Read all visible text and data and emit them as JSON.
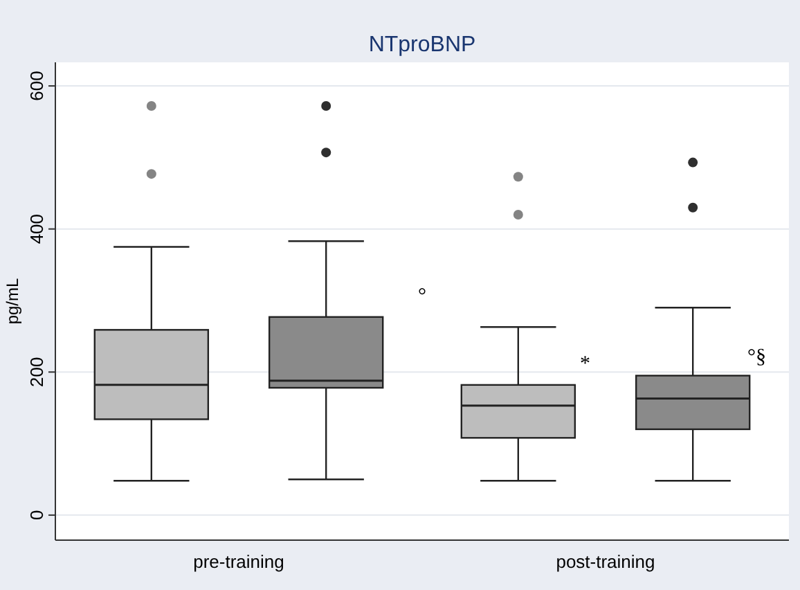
{
  "chart_data": {
    "type": "box",
    "title": "NTproBNP",
    "ylabel": "pg/mL",
    "categories": [
      "pre-training",
      "post-training"
    ],
    "ylim": [
      -35,
      633
    ],
    "yticks": [
      0,
      200,
      400,
      600
    ],
    "grid": "y",
    "series": [
      {
        "color": "#bdbdbd",
        "boxes": [
          {
            "low": 48,
            "q1": 134,
            "median": 182,
            "q3": 259,
            "high": 375,
            "outliers": [
              477,
              572
            ]
          },
          {
            "low": 48,
            "q1": 108,
            "median": 153,
            "q3": 182,
            "high": 263,
            "outliers": [
              420,
              473
            ]
          }
        ]
      },
      {
        "color": "#8a8a8a",
        "boxes": [
          {
            "low": 50,
            "q1": 178,
            "median": 188,
            "q3": 277,
            "high": 383,
            "outliers": [
              507,
              572
            ]
          },
          {
            "low": 48,
            "q1": 120,
            "median": 163,
            "q3": 195,
            "high": 290,
            "outliers": [
              430,
              493
            ]
          }
        ]
      }
    ],
    "annotations": [
      "°",
      "*",
      "°§"
    ]
  }
}
